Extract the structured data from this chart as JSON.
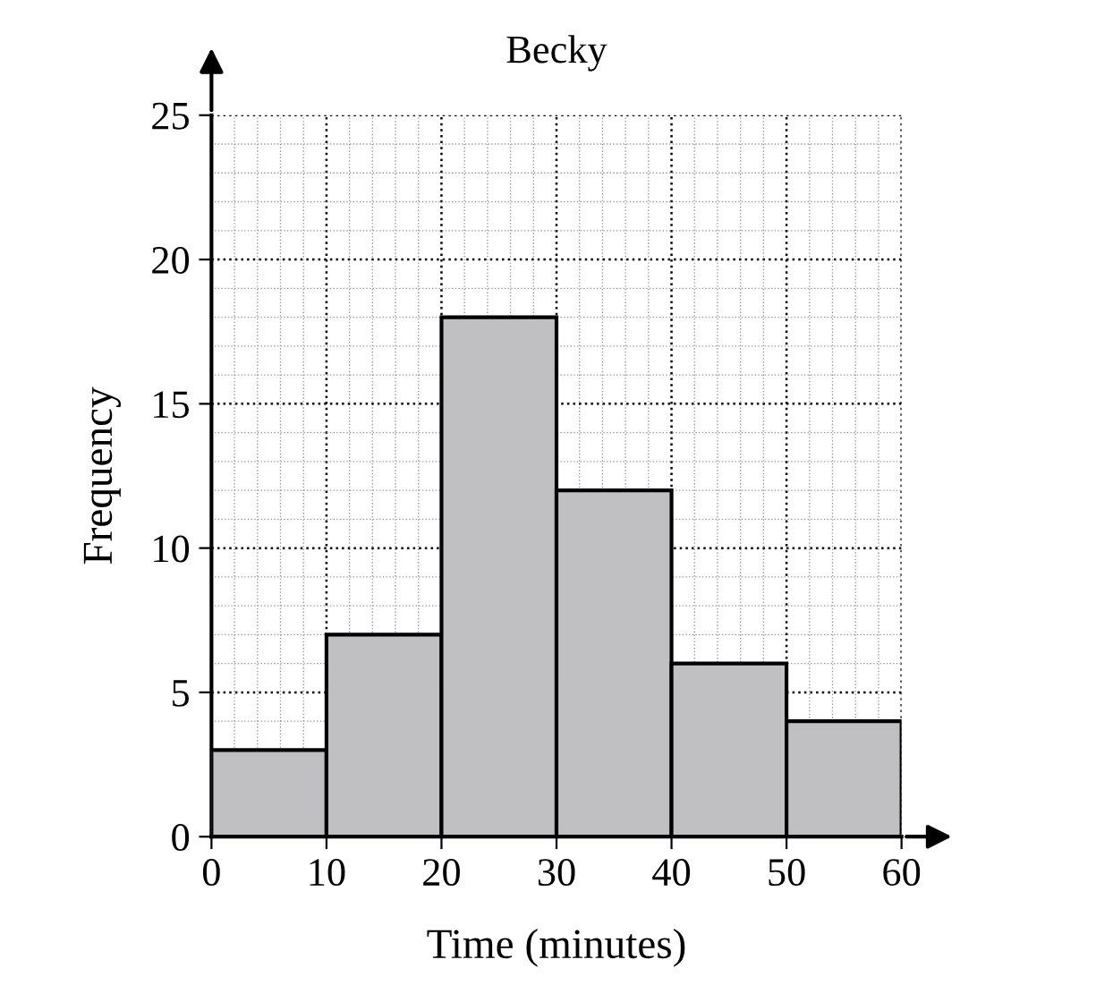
{
  "chart_data": {
    "type": "histogram",
    "title": "Becky",
    "xlabel": "Time (minutes)",
    "ylabel": "Frequency",
    "bins": [
      0,
      10,
      20,
      30,
      40,
      50,
      60
    ],
    "values": [
      3,
      7,
      18,
      12,
      6,
      4
    ],
    "color": "#c0c0c3",
    "xlim": [
      0,
      60
    ],
    "ylim": [
      0,
      25
    ],
    "xticks": [
      0,
      10,
      20,
      30,
      40,
      50,
      60
    ],
    "yticks": [
      0,
      5,
      10,
      15,
      20,
      25
    ],
    "grid": true
  }
}
